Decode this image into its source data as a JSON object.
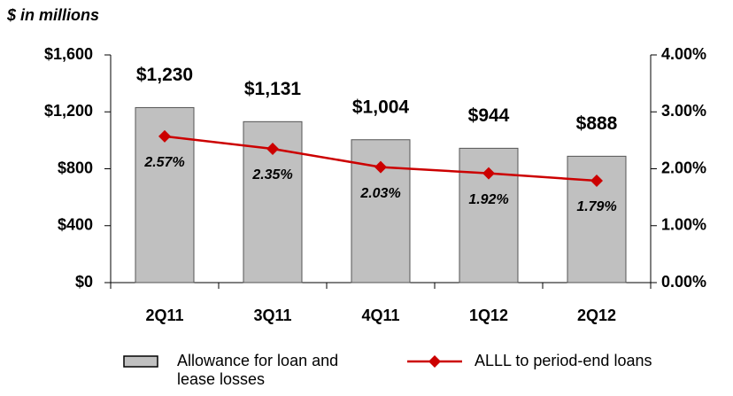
{
  "chart_data": {
    "type": "combo",
    "subtitle": "$ in millions",
    "categories": [
      "2Q11",
      "3Q11",
      "4Q11",
      "1Q12",
      "2Q12"
    ],
    "series": [
      {
        "name": "Allowance for loan and lease losses",
        "type": "bar",
        "color": "#c0c0c0",
        "values": [
          1230,
          1131,
          1004,
          944,
          888
        ],
        "value_labels": [
          "$1,230",
          "$1,131",
          "$1,004",
          "$944",
          "$888"
        ]
      },
      {
        "name": "ALLL to period-end loans",
        "type": "line",
        "axis": "y2",
        "color": "#cc0000",
        "values": [
          2.57,
          2.35,
          2.03,
          1.92,
          1.79
        ],
        "value_labels": [
          "2.57%",
          "2.35%",
          "2.03%",
          "1.92%",
          "1.79%"
        ]
      }
    ],
    "ylim": [
      0,
      1600
    ],
    "yticks": [
      {
        "value": 0,
        "label": "$0"
      },
      {
        "value": 400,
        "label": "$400"
      },
      {
        "value": 800,
        "label": "$800"
      },
      {
        "value": 1200,
        "label": "$1,200"
      },
      {
        "value": 1600,
        "label": "$1,600"
      }
    ],
    "y2lim": [
      0,
      4
    ],
    "y2ticks": [
      {
        "value": 0,
        "label": "0.00%"
      },
      {
        "value": 1,
        "label": "1.00%"
      },
      {
        "value": 2,
        "label": "2.00%"
      },
      {
        "value": 3,
        "label": "3.00%"
      },
      {
        "value": 4,
        "label": "4.00%"
      }
    ]
  }
}
